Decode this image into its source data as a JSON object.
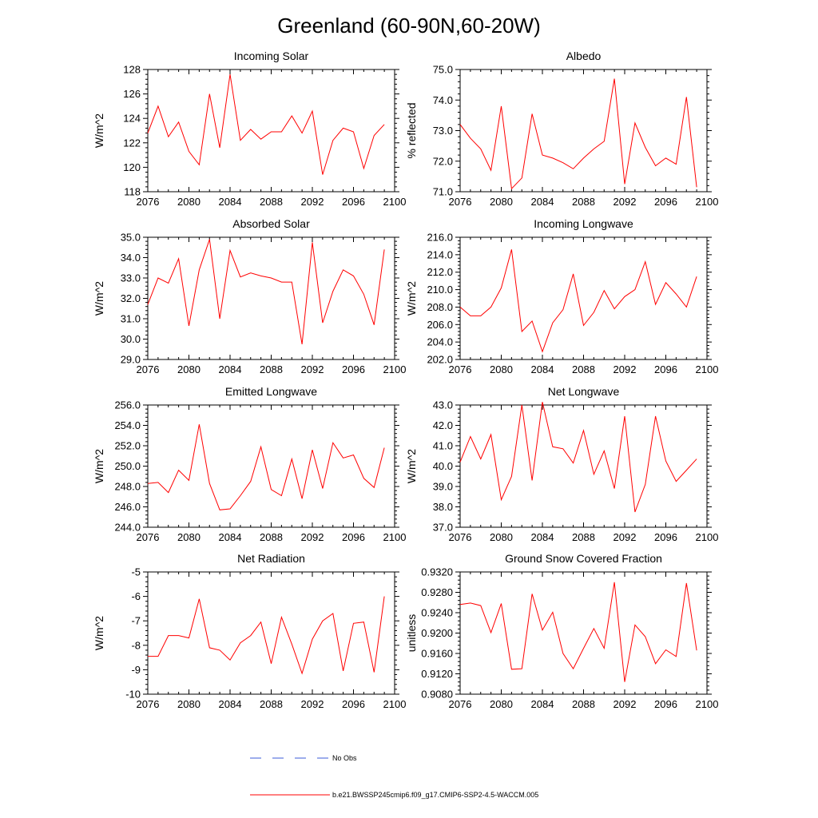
{
  "title": "Greenland (60-90N,60-20W)",
  "colors": {
    "model": "#ff0000",
    "obs": "#3b5bd9",
    "axis": "#000000"
  },
  "legend": {
    "obs_label": "No Obs",
    "model_label": "b.e21.BWSSP245cmip6.f09_g17.CMIP6-SSP2-4.5-WACCM.005"
  },
  "chart_data": [
    {
      "type": "line",
      "title": "Incoming Solar",
      "ylabel": "W/m^2",
      "xlim": [
        2076,
        2100
      ],
      "ylim": [
        118,
        128
      ],
      "xticks": [
        "2076",
        "2080",
        "2084",
        "2088",
        "2092",
        "2096",
        "2100"
      ],
      "yticks": [
        "118",
        "120",
        "122",
        "124",
        "126",
        "128"
      ],
      "x": [
        2076,
        2077,
        2078,
        2079,
        2080,
        2081,
        2082,
        2083,
        2084,
        2085,
        2086,
        2087,
        2088,
        2089,
        2090,
        2091,
        2092,
        2093,
        2094,
        2095,
        2096,
        2097,
        2098,
        2099
      ],
      "series": [
        {
          "values": [
            122.8,
            125.0,
            122.5,
            123.7,
            121.3,
            120.2,
            126.0,
            121.6,
            127.6,
            122.2,
            123.1,
            122.3,
            122.9,
            122.9,
            124.2,
            122.8,
            124.6,
            119.4,
            122.2,
            123.2,
            122.9,
            119.9,
            122.6,
            123.5
          ]
        }
      ]
    },
    {
      "type": "line",
      "title": "Albedo",
      "ylabel": "% reflected",
      "xlim": [
        2076,
        2100
      ],
      "ylim": [
        71.0,
        75.0
      ],
      "xticks": [
        "2076",
        "2080",
        "2084",
        "2088",
        "2092",
        "2096",
        "2100"
      ],
      "yticks": [
        "71.0",
        "72.0",
        "73.0",
        "74.0",
        "75.0"
      ],
      "x": [
        2076,
        2077,
        2078,
        2079,
        2080,
        2081,
        2082,
        2083,
        2084,
        2085,
        2086,
        2087,
        2088,
        2089,
        2090,
        2091,
        2092,
        2093,
        2094,
        2095,
        2096,
        2097,
        2098,
        2099
      ],
      "series": [
        {
          "values": [
            73.2,
            72.75,
            72.4,
            71.7,
            73.8,
            71.1,
            71.45,
            73.55,
            72.2,
            72.1,
            71.95,
            71.75,
            72.1,
            72.4,
            72.65,
            74.7,
            71.25,
            73.25,
            72.45,
            71.85,
            72.1,
            71.9,
            74.1,
            71.15
          ]
        }
      ]
    },
    {
      "type": "line",
      "title": "Absorbed Solar",
      "ylabel": "W/m^2",
      "xlim": [
        2076,
        2100
      ],
      "ylim": [
        29.0,
        35.0
      ],
      "xticks": [
        "2076",
        "2080",
        "2084",
        "2088",
        "2092",
        "2096",
        "2100"
      ],
      "yticks": [
        "29.0",
        "30.0",
        "31.0",
        "32.0",
        "33.0",
        "34.0",
        "35.0"
      ],
      "x": [
        2076,
        2077,
        2078,
        2079,
        2080,
        2081,
        2082,
        2083,
        2084,
        2085,
        2086,
        2087,
        2088,
        2089,
        2090,
        2091,
        2092,
        2093,
        2094,
        2095,
        2096,
        2097,
        2098,
        2099
      ],
      "series": [
        {
          "values": [
            31.7,
            33.0,
            32.75,
            33.95,
            30.65,
            33.4,
            34.9,
            31.0,
            34.35,
            33.05,
            33.25,
            33.1,
            33.0,
            32.8,
            32.8,
            29.75,
            34.75,
            30.8,
            32.35,
            33.4,
            33.1,
            32.2,
            30.7,
            34.4
          ]
        }
      ]
    },
    {
      "type": "line",
      "title": "Incoming Longwave",
      "ylabel": "W/m^2",
      "xlim": [
        2076,
        2100
      ],
      "ylim": [
        202.0,
        216.0
      ],
      "xticks": [
        "2076",
        "2080",
        "2084",
        "2088",
        "2092",
        "2096",
        "2100"
      ],
      "yticks": [
        "202.0",
        "204.0",
        "206.0",
        "208.0",
        "210.0",
        "212.0",
        "214.0",
        "216.0"
      ],
      "x": [
        2076,
        2077,
        2078,
        2079,
        2080,
        2081,
        2082,
        2083,
        2084,
        2085,
        2086,
        2087,
        2088,
        2089,
        2090,
        2091,
        2092,
        2093,
        2094,
        2095,
        2096,
        2097,
        2098,
        2099
      ],
      "series": [
        {
          "values": [
            208.0,
            207.0,
            207.0,
            208.0,
            210.2,
            214.6,
            205.2,
            206.4,
            202.9,
            206.2,
            207.7,
            211.8,
            205.9,
            207.4,
            209.9,
            207.8,
            209.2,
            210.0,
            213.2,
            208.3,
            210.8,
            209.5,
            208.0,
            211.5
          ]
        }
      ]
    },
    {
      "type": "line",
      "title": "Emitted Longwave",
      "ylabel": "W/m^2",
      "xlim": [
        2076,
        2100
      ],
      "ylim": [
        244.0,
        256.0
      ],
      "xticks": [
        "2076",
        "2080",
        "2084",
        "2088",
        "2092",
        "2096",
        "2100"
      ],
      "yticks": [
        "244.0",
        "246.0",
        "248.0",
        "250.0",
        "252.0",
        "254.0",
        "256.0"
      ],
      "x": [
        2076,
        2077,
        2078,
        2079,
        2080,
        2081,
        2082,
        2083,
        2084,
        2085,
        2086,
        2087,
        2088,
        2089,
        2090,
        2091,
        2092,
        2093,
        2094,
        2095,
        2096,
        2097,
        2098,
        2099
      ],
      "series": [
        {
          "values": [
            248.3,
            248.4,
            247.4,
            249.6,
            248.6,
            254.1,
            248.3,
            245.7,
            245.8,
            247.1,
            248.5,
            251.9,
            247.7,
            247.1,
            250.7,
            246.8,
            251.6,
            247.8,
            252.3,
            250.8,
            251.1,
            248.8,
            247.9,
            251.8
          ]
        }
      ]
    },
    {
      "type": "line",
      "title": "Net Longwave",
      "ylabel": "W/m^2",
      "xlim": [
        2076,
        2100
      ],
      "ylim": [
        37.0,
        43.0
      ],
      "xticks": [
        "2076",
        "2080",
        "2084",
        "2088",
        "2092",
        "2096",
        "2100"
      ],
      "yticks": [
        "37.0",
        "38.0",
        "39.0",
        "40.0",
        "41.0",
        "42.0",
        "43.0"
      ],
      "x": [
        2076,
        2077,
        2078,
        2079,
        2080,
        2081,
        2082,
        2083,
        2084,
        2085,
        2086,
        2087,
        2088,
        2089,
        2090,
        2091,
        2092,
        2093,
        2094,
        2095,
        2096,
        2097,
        2098,
        2099
      ],
      "series": [
        {
          "values": [
            40.2,
            41.45,
            40.35,
            41.55,
            38.35,
            39.5,
            43.0,
            39.3,
            43.15,
            40.95,
            40.85,
            40.15,
            41.75,
            39.6,
            40.75,
            38.9,
            42.45,
            37.75,
            39.1,
            42.45,
            40.25,
            39.25,
            39.8,
            40.35
          ]
        }
      ]
    },
    {
      "type": "line",
      "title": "Net Radiation",
      "ylabel": "W/m^2",
      "xlim": [
        2076,
        2100
      ],
      "ylim": [
        -10,
        -5
      ],
      "xticks": [
        "2076",
        "2080",
        "2084",
        "2088",
        "2092",
        "2096",
        "2100"
      ],
      "yticks": [
        "-10",
        "-9",
        "-8",
        "-7",
        "-6",
        "-5"
      ],
      "x": [
        2076,
        2077,
        2078,
        2079,
        2080,
        2081,
        2082,
        2083,
        2084,
        2085,
        2086,
        2087,
        2088,
        2089,
        2090,
        2091,
        2092,
        2093,
        2094,
        2095,
        2096,
        2097,
        2098,
        2099
      ],
      "series": [
        {
          "values": [
            -8.45,
            -8.45,
            -7.6,
            -7.6,
            -7.7,
            -6.1,
            -8.1,
            -8.2,
            -8.6,
            -7.9,
            -7.6,
            -7.05,
            -8.75,
            -6.85,
            -7.95,
            -9.15,
            -7.75,
            -7.0,
            -6.7,
            -9.05,
            -7.1,
            -7.05,
            -9.1,
            -6.0
          ]
        }
      ]
    },
    {
      "type": "line",
      "title": "Ground Snow Covered Fraction",
      "ylabel": "unitless",
      "xlim": [
        2076,
        2100
      ],
      "ylim": [
        0.908,
        0.932
      ],
      "xticks": [
        "2076",
        "2080",
        "2084",
        "2088",
        "2092",
        "2096",
        "2100"
      ],
      "yticks": [
        "0.9080",
        "0.9120",
        "0.9160",
        "0.9200",
        "0.9240",
        "0.9280",
        "0.9320"
      ],
      "x": [
        2076,
        2077,
        2078,
        2079,
        2080,
        2081,
        2082,
        2083,
        2084,
        2085,
        2086,
        2087,
        2088,
        2089,
        2090,
        2091,
        2092,
        2093,
        2094,
        2095,
        2096,
        2097,
        2098,
        2099
      ],
      "series": [
        {
          "values": [
            0.9256,
            0.9259,
            0.9254,
            0.9201,
            0.9258,
            0.9129,
            0.913,
            0.9277,
            0.9206,
            0.9241,
            0.916,
            0.913,
            0.917,
            0.9209,
            0.917,
            0.93,
            0.9104,
            0.9216,
            0.9193,
            0.914,
            0.9167,
            0.9154,
            0.9298,
            0.9166
          ]
        }
      ]
    }
  ]
}
